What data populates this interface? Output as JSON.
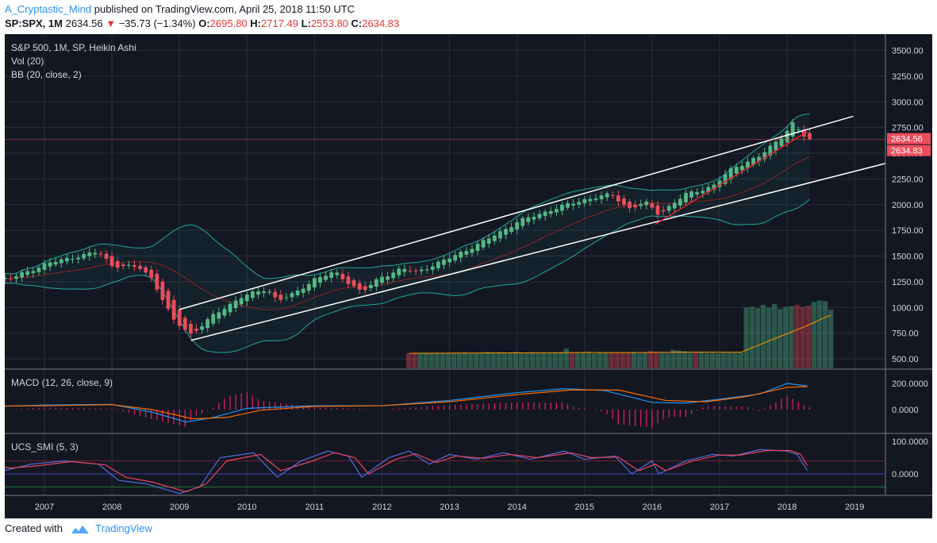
{
  "header": {
    "author": "A_Cryptastic_Mind",
    "published_text": "published on TradingView.com, April 25, 2018 11:50 UTC",
    "symbol": "SP:SPX, 1M",
    "last": "2634.56",
    "change": "−35.73 (−1.34%)",
    "o_label": "O:",
    "o_value": "2695.80",
    "h_label": "H:",
    "h_value": "2717.49",
    "l_label": "L:",
    "l_value": "2553.80",
    "c_label": "C:",
    "c_value": "2634.83"
  },
  "footer": {
    "created_with": "Created with",
    "brand": "TradingView"
  },
  "colors": {
    "background": "#131722",
    "grid": "#2a2e39",
    "up": "#53b987",
    "down": "#eb4d5c",
    "bb_band": "#26a69a",
    "bb_basis": "#872323",
    "vol_ma": "#ff9800",
    "trend_white": "#ffffff",
    "trend_red": "#e5202f",
    "macd_line": "#2196f3",
    "signal_line": "#ff6d00",
    "smi_line": "#4f6fd6",
    "smi_signal": "#e94560"
  },
  "chart_data": [
    {
      "type": "candlestick",
      "title": "S&P 500, 1M, SP, Heikin Ashi",
      "indicators": [
        "Vol (20)",
        "BB (20, close, 2)"
      ],
      "ylim": [
        400,
        3650
      ],
      "yticks": [
        "3500.00",
        "3250.00",
        "3000.00",
        "2750.00",
        "2500.00",
        "2250.00",
        "2000.00",
        "1750.00",
        "1500.00",
        "1250.00",
        "1000.00",
        "750.00",
        "500.00"
      ],
      "xticks": [
        "2007",
        "2008",
        "2009",
        "2010",
        "2011",
        "2012",
        "2013",
        "2014",
        "2015",
        "2016",
        "2017",
        "2018",
        "2019"
      ],
      "price_labels": [
        "2634.56",
        "2634.83"
      ],
      "anchors": [
        {
          "t": 2006.5,
          "p": 1280
        },
        {
          "t": 2007.0,
          "p": 1420
        },
        {
          "t": 2007.5,
          "p": 1500
        },
        {
          "t": 2007.8,
          "p": 1540
        },
        {
          "t": 2008.0,
          "p": 1410
        },
        {
          "t": 2008.4,
          "p": 1390
        },
        {
          "t": 2008.6,
          "p": 1280
        },
        {
          "t": 2008.9,
          "p": 880
        },
        {
          "t": 2009.17,
          "p": 740
        },
        {
          "t": 2009.5,
          "p": 920
        },
        {
          "t": 2009.9,
          "p": 1100
        },
        {
          "t": 2010.3,
          "p": 1180
        },
        {
          "t": 2010.45,
          "p": 1070
        },
        {
          "t": 2010.7,
          "p": 1130
        },
        {
          "t": 2011.0,
          "p": 1280
        },
        {
          "t": 2011.3,
          "p": 1340
        },
        {
          "t": 2011.7,
          "p": 1150
        },
        {
          "t": 2012.0,
          "p": 1300
        },
        {
          "t": 2012.3,
          "p": 1380
        },
        {
          "t": 2012.5,
          "p": 1340
        },
        {
          "t": 2013.0,
          "p": 1480
        },
        {
          "t": 2013.5,
          "p": 1640
        },
        {
          "t": 2014.0,
          "p": 1830
        },
        {
          "t": 2014.5,
          "p": 1950
        },
        {
          "t": 2015.0,
          "p": 2050
        },
        {
          "t": 2015.4,
          "p": 2100
        },
        {
          "t": 2015.65,
          "p": 1960
        },
        {
          "t": 2015.9,
          "p": 2020
        },
        {
          "t": 2016.1,
          "p": 1910
        },
        {
          "t": 2016.5,
          "p": 2100
        },
        {
          "t": 2016.9,
          "p": 2180
        },
        {
          "t": 2017.2,
          "p": 2360
        },
        {
          "t": 2017.6,
          "p": 2470
        },
        {
          "t": 2017.9,
          "p": 2650
        },
        {
          "t": 2018.08,
          "p": 2790
        },
        {
          "t": 2018.2,
          "p": 2700
        },
        {
          "t": 2018.3,
          "p": 2634
        }
      ],
      "channel_top": [
        [
          2009.0,
          980
        ],
        [
          2018.98,
          2860
        ]
      ],
      "channel_bottom": [
        [
          2009.17,
          680
        ],
        [
          2019.45,
          2400
        ]
      ],
      "red_trend": [
        [
          2016.05,
          1810
        ],
        [
          2018.3,
          2710
        ]
      ],
      "price_line": 2634.56
    },
    {
      "type": "bar",
      "title": "Vol (20)",
      "note": "volume histogram only present from 2012.4 onward",
      "x_start": 2012.4,
      "values": [
        0.42,
        0.43,
        0.42,
        0.43,
        0.41,
        0.44,
        0.43,
        0.42,
        0.44,
        0.43,
        0.45,
        0.42,
        0.43,
        0.44,
        0.46,
        0.44,
        0.45,
        0.43,
        0.44,
        0.46,
        0.42,
        0.43,
        0.44,
        0.42,
        0.43,
        0.42,
        0.44,
        0.45,
        0.55,
        0.43,
        0.44,
        0.45,
        0.46,
        0.42,
        0.44,
        0.43,
        0.45,
        0.44,
        0.43,
        0.44,
        0.46,
        0.42,
        0.45,
        0.48,
        0.46,
        0.44,
        0.43,
        0.52,
        0.5,
        0.48,
        0.44,
        0.45,
        0.46,
        0.43,
        0.44,
        0.42,
        0.44,
        0.43,
        0.44,
        0.45,
        1.7,
        1.72,
        1.68,
        1.78,
        1.7,
        1.8,
        1.66,
        1.72,
        1.74,
        1.78,
        1.72,
        1.76,
        1.86,
        1.9,
        1.88,
        1.64
      ]
    },
    {
      "type": "line",
      "title": "MACD (12, 26, close, 9)",
      "yticks": [
        "200.0000",
        "0.0000"
      ],
      "ylim": [
        -120,
        260
      ],
      "series": [
        {
          "name": "MACD",
          "points": [
            [
              2006.0,
              20
            ],
            [
              2007.0,
              35
            ],
            [
              2008.0,
              40
            ],
            [
              2008.6,
              -20
            ],
            [
              2009.1,
              -95
            ],
            [
              2009.5,
              -60
            ],
            [
              2010.0,
              10
            ],
            [
              2011.0,
              30
            ],
            [
              2012.0,
              30
            ],
            [
              2013.0,
              70
            ],
            [
              2014.0,
              130
            ],
            [
              2014.7,
              160
            ],
            [
              2015.3,
              145
            ],
            [
              2016.0,
              55
            ],
            [
              2016.5,
              50
            ],
            [
              2017.0,
              80
            ],
            [
              2017.6,
              120
            ],
            [
              2018.0,
              200
            ],
            [
              2018.3,
              180
            ]
          ]
        },
        {
          "name": "Signal",
          "points": [
            [
              2006.0,
              25
            ],
            [
              2007.0,
              30
            ],
            [
              2008.0,
              38
            ],
            [
              2008.6,
              0
            ],
            [
              2009.2,
              -70
            ],
            [
              2009.7,
              -60
            ],
            [
              2010.2,
              -5
            ],
            [
              2011.0,
              25
            ],
            [
              2012.0,
              30
            ],
            [
              2013.0,
              60
            ],
            [
              2014.0,
              115
            ],
            [
              2014.8,
              150
            ],
            [
              2015.5,
              150
            ],
            [
              2016.2,
              70
            ],
            [
              2016.8,
              60
            ],
            [
              2017.4,
              100
            ],
            [
              2018.0,
              170
            ],
            [
              2018.3,
              175
            ]
          ]
        }
      ],
      "histogram_x": [
        2006.4,
        2007.5,
        2008.0,
        2009.2,
        2010.0,
        2011.5,
        2012.3,
        2015.0,
        2015.4,
        2016.5,
        2017.0,
        2018.3
      ]
    },
    {
      "type": "line",
      "title": "UCS_SMI (5, 3)",
      "yticks": [
        "100.0000",
        "0.0000"
      ],
      "ylim": [
        -70,
        130
      ],
      "series": [
        {
          "name": "SMI",
          "points": [
            [
              2006.0,
              30
            ],
            [
              2006.4,
              10
            ],
            [
              2006.8,
              30
            ],
            [
              2007.3,
              40
            ],
            [
              2007.8,
              30
            ],
            [
              2008.1,
              -20
            ],
            [
              2008.5,
              -30
            ],
            [
              2009.0,
              -60
            ],
            [
              2009.3,
              -40
            ],
            [
              2009.6,
              50
            ],
            [
              2010.1,
              65
            ],
            [
              2010.45,
              -10
            ],
            [
              2010.8,
              40
            ],
            [
              2011.2,
              70
            ],
            [
              2011.5,
              55
            ],
            [
              2011.7,
              -10
            ],
            [
              2012.1,
              50
            ],
            [
              2012.4,
              70
            ],
            [
              2012.7,
              30
            ],
            [
              2013.0,
              60
            ],
            [
              2013.4,
              45
            ],
            [
              2013.8,
              65
            ],
            [
              2014.2,
              45
            ],
            [
              2014.7,
              70
            ],
            [
              2015.0,
              45
            ],
            [
              2015.45,
              55
            ],
            [
              2015.7,
              0
            ],
            [
              2016.0,
              40
            ],
            [
              2016.1,
              0
            ],
            [
              2016.5,
              40
            ],
            [
              2016.9,
              60
            ],
            [
              2017.2,
              55
            ],
            [
              2017.6,
              75
            ],
            [
              2018.0,
              70
            ],
            [
              2018.15,
              60
            ],
            [
              2018.3,
              10
            ]
          ]
        },
        {
          "name": "Signal",
          "points": [
            [
              2006.0,
              35
            ],
            [
              2006.5,
              18
            ],
            [
              2006.9,
              25
            ],
            [
              2007.4,
              38
            ],
            [
              2007.9,
              28
            ],
            [
              2008.2,
              -10
            ],
            [
              2008.6,
              -25
            ],
            [
              2009.1,
              -55
            ],
            [
              2009.4,
              -30
            ],
            [
              2009.7,
              40
            ],
            [
              2010.2,
              60
            ],
            [
              2010.5,
              10
            ],
            [
              2010.9,
              35
            ],
            [
              2011.3,
              65
            ],
            [
              2011.6,
              50
            ],
            [
              2011.8,
              0
            ],
            [
              2012.2,
              45
            ],
            [
              2012.5,
              62
            ],
            [
              2012.8,
              35
            ],
            [
              2013.1,
              55
            ],
            [
              2013.5,
              48
            ],
            [
              2013.9,
              60
            ],
            [
              2014.3,
              50
            ],
            [
              2014.8,
              65
            ],
            [
              2015.1,
              50
            ],
            [
              2015.5,
              52
            ],
            [
              2015.8,
              10
            ],
            [
              2016.05,
              30
            ],
            [
              2016.2,
              10
            ],
            [
              2016.6,
              40
            ],
            [
              2017.0,
              58
            ],
            [
              2017.3,
              58
            ],
            [
              2017.7,
              72
            ],
            [
              2018.05,
              72
            ],
            [
              2018.2,
              60
            ],
            [
              2018.3,
              25
            ]
          ]
        }
      ],
      "levels": [
        40,
        -40
      ]
    }
  ]
}
